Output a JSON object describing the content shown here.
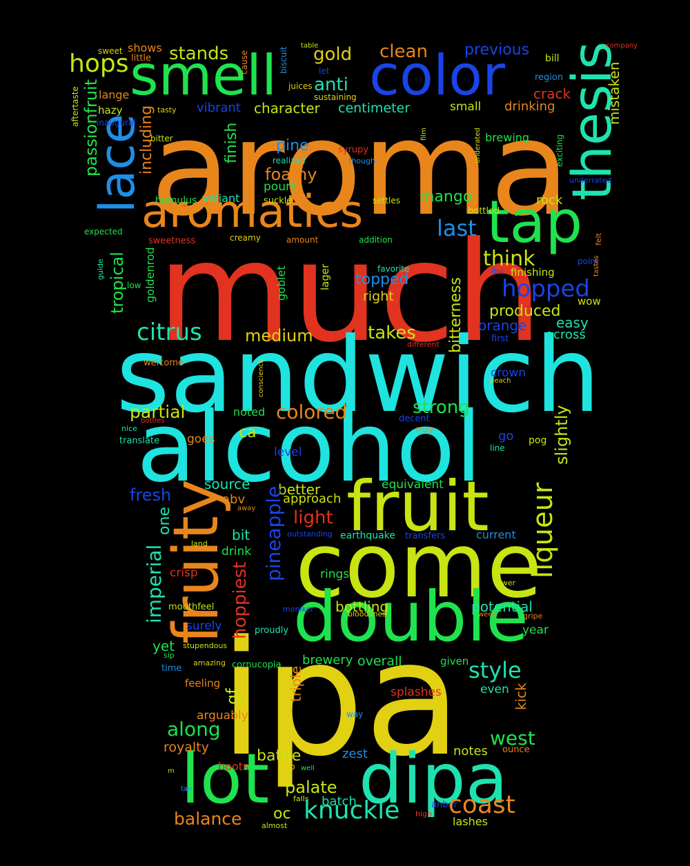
{
  "palette": {
    "background": "#000000",
    "orange": "#e8861c",
    "red": "#e1331f",
    "cyan": "#1ee3df",
    "yellow": "#e2d112",
    "lime": "#c8e412",
    "green": "#1ee34e",
    "blue": "#1a44e6",
    "sky": "#1e8fe6",
    "teal": "#1ee3b0"
  },
  "words": [
    "aroma",
    "much",
    "sandwich",
    "alcohol",
    "ipa",
    "come",
    "fruit",
    "double",
    "dipa",
    "lot",
    "fruity",
    "color",
    "smell",
    "thesis",
    "tap",
    "aromatics",
    "lace",
    "hops",
    "stands",
    "shows",
    "sweet",
    "little",
    "table",
    "cause",
    "biscuit",
    "let",
    "juices",
    "sustaining",
    "gold",
    "anti",
    "clean",
    "previous",
    "bill",
    "company",
    "region",
    "crack",
    "mistaken",
    "drinking",
    "centimeter",
    "small",
    "lange",
    "hazy",
    "tasty",
    "inaugural",
    "character",
    "vibrant",
    "passionfruit",
    "aftertaste",
    "including",
    "bitter",
    "finish",
    "pine",
    "syrupy",
    "though",
    "realized",
    "film",
    "underated",
    "brewing",
    "exciting",
    "underrated",
    "foamy",
    "pours",
    "humulus",
    "valiant",
    "suckle",
    "settles",
    "mango",
    "bottled",
    "rock",
    "expected",
    "creamy",
    "sweetness",
    "amount",
    "addition",
    "last",
    "think",
    "felt",
    "point",
    "tropical",
    "guide",
    "goldenrod",
    "low",
    "goblet",
    "lager",
    "favorite",
    "topped",
    "right",
    "hopped",
    "finishing",
    "ibu",
    "tastes",
    "wow",
    "bitterness",
    "produced",
    "orange",
    "easy",
    "first",
    "across",
    "citrus",
    "medium",
    "takes",
    "different",
    "welcome",
    "conscience",
    "crown",
    "peach",
    "partial",
    "colored",
    "strong",
    "bottles",
    "truly",
    "nice",
    "noted",
    "decent",
    "slightly",
    "translate",
    "goes",
    "ca",
    "go",
    "pog",
    "level",
    "line",
    "source",
    "equivalent",
    "better",
    "abv",
    "fresh",
    "approach",
    "one",
    "away",
    "light",
    "liqueur",
    "bit",
    "land",
    "outstanding",
    "earthquake",
    "transfers",
    "current",
    "drink",
    "imperial",
    "crisp",
    "hoppiest",
    "pineapple",
    "rings",
    "lower",
    "mouthfeel",
    "moniker",
    "bottling",
    "bloodlines",
    "potential",
    "week",
    "gripe",
    "surely",
    "proudly",
    "year",
    "yet",
    "stupendous",
    "sip",
    "amazing",
    "cornucopia",
    "brewery",
    "overall",
    "given",
    "time",
    "style",
    "feeling",
    "triple",
    "gf",
    "kick",
    "even",
    "splashes",
    "arguably",
    "way",
    "along",
    "west",
    "royalty",
    "notes",
    "ounce",
    "battle",
    "zest",
    "boots",
    "top",
    "well",
    "m",
    "tan",
    "palate",
    "batch",
    "anber",
    "coast",
    "falls",
    "high",
    "balance",
    "oc",
    "knuckle",
    "lashes",
    "almost"
  ]
}
